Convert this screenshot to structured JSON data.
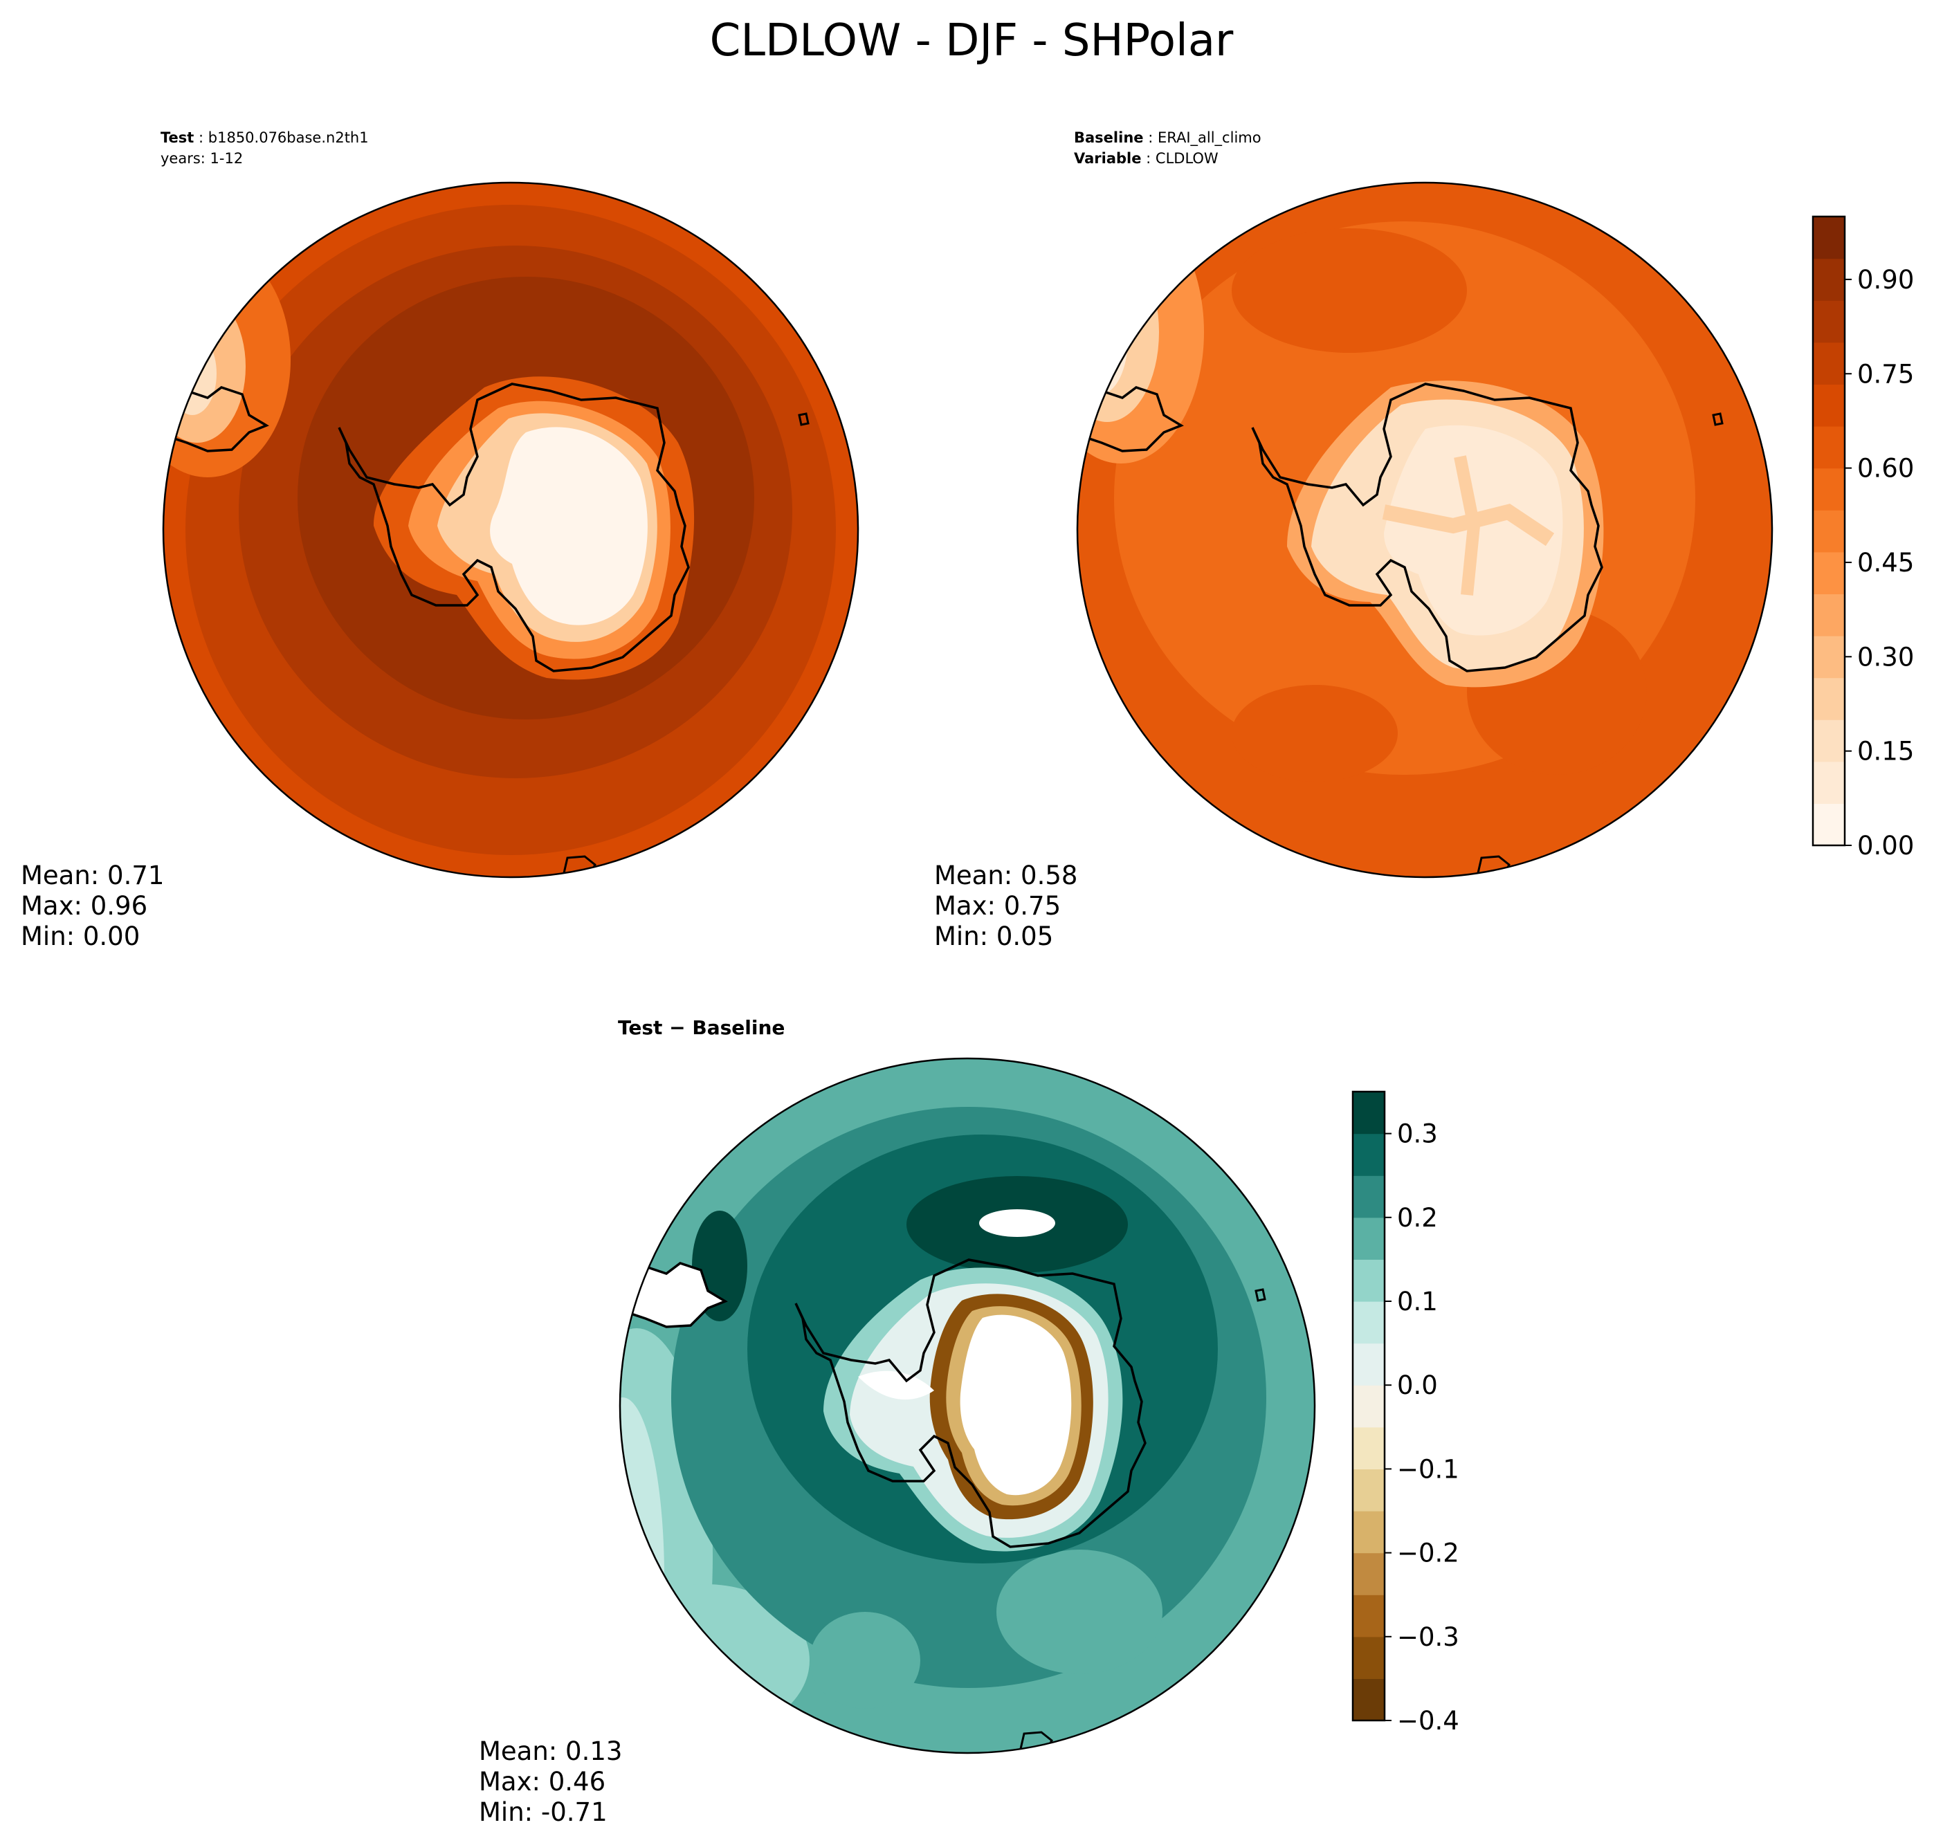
{
  "chart_data": {
    "type": "polar-contour-maps",
    "title": "CLDLOW - DJF - SHPolar",
    "panels": [
      {
        "id": "test",
        "caption": [
          {
            "key": "Test",
            "value": "b1850.076base.n2th1"
          },
          {
            "key": "",
            "value": "years: 1-12"
          }
        ],
        "stats": {
          "mean": "Mean:  0.71",
          "max": "Max:  0.96",
          "min": "Min:  0.00"
        }
      },
      {
        "id": "baseline",
        "caption": [
          {
            "key": "Baseline",
            "value": "ERAI_all_climo"
          },
          {
            "key": "Variable",
            "value": "CLDLOW"
          }
        ],
        "stats": {
          "mean": "Mean:  0.58",
          "max": "Max:  0.75",
          "min": "Min:  0.05"
        }
      },
      {
        "id": "difference",
        "caption": [
          {
            "key": "Test − Baseline",
            "value": ""
          }
        ],
        "stats": {
          "mean": "Mean:  0.13",
          "max": "Max:  0.46",
          "min": "Min: -0.71"
        }
      }
    ],
    "colorbars": [
      {
        "id": "field",
        "range": [
          0.0,
          1.0
        ],
        "ticks": [
          0.0,
          0.15,
          0.3,
          0.45,
          0.6,
          0.75,
          0.9
        ],
        "tick_labels": [
          "0.00",
          "0.15",
          "0.30",
          "0.45",
          "0.60",
          "0.75",
          "0.90"
        ],
        "colors": [
          "#fff5eb",
          "#feead5",
          "#fde0c1",
          "#fdcfa1",
          "#fdbc82",
          "#fda762",
          "#fd9243",
          "#f77e2a",
          "#f06b17",
          "#e5590a",
          "#d84a02",
          "#c44102",
          "#ae3803",
          "#9a3103",
          "#7f2704"
        ]
      },
      {
        "id": "diff",
        "range": [
          -0.4,
          0.35
        ],
        "ticks": [
          -0.4,
          -0.3,
          -0.2,
          -0.1,
          0.0,
          0.1,
          0.2,
          0.3
        ],
        "tick_labels": [
          "−0.4",
          "−0.3",
          "−0.2",
          "−0.1",
          "0.0",
          "0.1",
          "0.2",
          "0.3"
        ],
        "colors": [
          "#6b3c07",
          "#8a500b",
          "#a76519",
          "#c18a40",
          "#d8b26a",
          "#e7cf94",
          "#f3e6bf",
          "#f5f0e3",
          "#e4f1ef",
          "#c5e9e3",
          "#93d4c9",
          "#5bb1a4",
          "#2e8b82",
          "#0b6960",
          "#00473c"
        ]
      }
    ]
  }
}
